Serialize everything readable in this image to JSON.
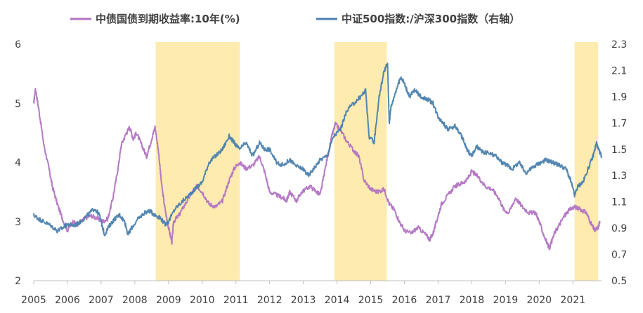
{
  "chart_data": {
    "type": "line",
    "legend_placement": "top",
    "grid": false,
    "x_range": [
      2005,
      2021.85
    ],
    "y_left": {
      "range": [
        2,
        6
      ],
      "ticks": [
        "2",
        "3",
        "4",
        "5",
        "6"
      ],
      "tick_values": [
        2,
        3,
        4,
        5,
        6
      ]
    },
    "y_right": {
      "range": [
        0.5,
        2.3
      ],
      "ticks": [
        "0.5",
        "0.7",
        "0.9",
        "1.1",
        "1.3",
        "1.5",
        "1.7",
        "1.9",
        "2.1",
        "2.3"
      ],
      "tick_values": [
        0.5,
        0.7,
        0.9,
        1.1,
        1.3,
        1.5,
        1.7,
        1.9,
        2.1,
        2.3
      ]
    },
    "x_ticks": [
      "2005",
      "2006",
      "2007",
      "2008",
      "2009",
      "2010",
      "2011",
      "2012",
      "2013",
      "2014",
      "2015",
      "2016",
      "2017",
      "2018",
      "2019",
      "2020",
      "2021"
    ],
    "x_tick_values": [
      2005,
      2006,
      2007,
      2008,
      2009,
      2010,
      2011,
      2012,
      2013,
      2014,
      2015,
      2016,
      2017,
      2018,
      2019,
      2020,
      2021
    ],
    "shaded_periods": [
      [
        2008.62,
        2011.12
      ],
      [
        2013.92,
        2015.48
      ],
      [
        2021.05,
        2021.75
      ]
    ],
    "shade_color": "#fdebb0",
    "series": [
      {
        "name": "中债国债到期收益率:10年(%)",
        "axis": "left",
        "color": "#b173c2",
        "points": [
          [
            2005.0,
            5.0
          ],
          [
            2005.05,
            5.25
          ],
          [
            2005.15,
            4.9
          ],
          [
            2005.3,
            4.3
          ],
          [
            2005.45,
            3.9
          ],
          [
            2005.55,
            3.6
          ],
          [
            2005.7,
            3.3
          ],
          [
            2005.85,
            3.05
          ],
          [
            2006.0,
            2.85
          ],
          [
            2006.15,
            3.0
          ],
          [
            2006.3,
            2.95
          ],
          [
            2006.5,
            3.05
          ],
          [
            2006.7,
            3.1
          ],
          [
            2006.9,
            3.05
          ],
          [
            2007.05,
            3.0
          ],
          [
            2007.2,
            3.05
          ],
          [
            2007.35,
            3.4
          ],
          [
            2007.5,
            3.9
          ],
          [
            2007.6,
            4.3
          ],
          [
            2007.75,
            4.5
          ],
          [
            2007.85,
            4.6
          ],
          [
            2007.95,
            4.4
          ],
          [
            2008.05,
            4.5
          ],
          [
            2008.2,
            4.3
          ],
          [
            2008.35,
            4.1
          ],
          [
            2008.5,
            4.4
          ],
          [
            2008.6,
            4.6
          ],
          [
            2008.7,
            4.2
          ],
          [
            2008.8,
            3.6
          ],
          [
            2008.9,
            3.2
          ],
          [
            2009.0,
            2.9
          ],
          [
            2009.1,
            2.65
          ],
          [
            2009.15,
            3.0
          ],
          [
            2009.3,
            3.1
          ],
          [
            2009.5,
            3.3
          ],
          [
            2009.7,
            3.5
          ],
          [
            2009.85,
            3.6
          ],
          [
            2010.0,
            3.5
          ],
          [
            2010.2,
            3.3
          ],
          [
            2010.4,
            3.25
          ],
          [
            2010.6,
            3.35
          ],
          [
            2010.8,
            3.7
          ],
          [
            2010.95,
            3.9
          ],
          [
            2011.1,
            4.0
          ],
          [
            2011.3,
            3.9
          ],
          [
            2011.5,
            3.95
          ],
          [
            2011.7,
            4.1
          ],
          [
            2011.85,
            3.85
          ],
          [
            2012.0,
            3.5
          ],
          [
            2012.2,
            3.45
          ],
          [
            2012.4,
            3.4
          ],
          [
            2012.5,
            3.35
          ],
          [
            2012.6,
            3.5
          ],
          [
            2012.8,
            3.35
          ],
          [
            2012.95,
            3.5
          ],
          [
            2013.2,
            3.6
          ],
          [
            2013.4,
            3.5
          ],
          [
            2013.5,
            3.45
          ],
          [
            2013.65,
            3.9
          ],
          [
            2013.85,
            4.45
          ],
          [
            2013.95,
            4.65
          ],
          [
            2014.1,
            4.55
          ],
          [
            2014.3,
            4.35
          ],
          [
            2014.5,
            4.2
          ],
          [
            2014.65,
            4.1
          ],
          [
            2014.8,
            3.7
          ],
          [
            2015.0,
            3.55
          ],
          [
            2015.2,
            3.5
          ],
          [
            2015.4,
            3.55
          ],
          [
            2015.55,
            3.3
          ],
          [
            2015.7,
            3.2
          ],
          [
            2015.85,
            3.0
          ],
          [
            2016.0,
            2.85
          ],
          [
            2016.2,
            2.8
          ],
          [
            2016.4,
            2.9
          ],
          [
            2016.6,
            2.8
          ],
          [
            2016.75,
            2.7
          ],
          [
            2016.85,
            2.8
          ],
          [
            2016.95,
            3.0
          ],
          [
            2017.1,
            3.3
          ],
          [
            2017.3,
            3.45
          ],
          [
            2017.5,
            3.6
          ],
          [
            2017.7,
            3.65
          ],
          [
            2017.85,
            3.7
          ],
          [
            2018.0,
            3.85
          ],
          [
            2018.2,
            3.75
          ],
          [
            2018.4,
            3.6
          ],
          [
            2018.6,
            3.55
          ],
          [
            2018.8,
            3.4
          ],
          [
            2018.95,
            3.2
          ],
          [
            2019.1,
            3.15
          ],
          [
            2019.3,
            3.4
          ],
          [
            2019.5,
            3.25
          ],
          [
            2019.7,
            3.15
          ],
          [
            2019.9,
            3.15
          ],
          [
            2020.0,
            3.0
          ],
          [
            2020.15,
            2.75
          ],
          [
            2020.3,
            2.55
          ],
          [
            2020.45,
            2.8
          ],
          [
            2020.6,
            2.95
          ],
          [
            2020.75,
            3.1
          ],
          [
            2020.9,
            3.2
          ],
          [
            2021.05,
            3.25
          ],
          [
            2021.25,
            3.2
          ],
          [
            2021.4,
            3.15
          ],
          [
            2021.55,
            2.95
          ],
          [
            2021.65,
            2.85
          ],
          [
            2021.75,
            2.9
          ],
          [
            2021.8,
            3.0
          ]
        ]
      },
      {
        "name": "中证500指数:/沪深300指数（右轴）",
        "axis": "right",
        "color": "#4a7fad",
        "points": [
          [
            2005.0,
            1.0
          ],
          [
            2005.15,
            0.97
          ],
          [
            2005.3,
            0.95
          ],
          [
            2005.5,
            0.92
          ],
          [
            2005.7,
            0.88
          ],
          [
            2005.85,
            0.9
          ],
          [
            2006.0,
            0.93
          ],
          [
            2006.2,
            0.92
          ],
          [
            2006.4,
            0.95
          ],
          [
            2006.6,
            1.0
          ],
          [
            2006.8,
            1.05
          ],
          [
            2006.95,
            1.0
          ],
          [
            2007.1,
            0.85
          ],
          [
            2007.25,
            0.92
          ],
          [
            2007.4,
            0.97
          ],
          [
            2007.55,
            1.0
          ],
          [
            2007.7,
            0.95
          ],
          [
            2007.8,
            0.85
          ],
          [
            2007.9,
            0.9
          ],
          [
            2008.1,
            0.97
          ],
          [
            2008.3,
            1.02
          ],
          [
            2008.45,
            1.03
          ],
          [
            2008.6,
            1.0
          ],
          [
            2008.75,
            0.98
          ],
          [
            2008.9,
            0.93
          ],
          [
            2009.0,
            0.95
          ],
          [
            2009.2,
            1.05
          ],
          [
            2009.4,
            1.1
          ],
          [
            2009.6,
            1.15
          ],
          [
            2009.8,
            1.2
          ],
          [
            2010.0,
            1.25
          ],
          [
            2010.2,
            1.4
          ],
          [
            2010.4,
            1.45
          ],
          [
            2010.6,
            1.5
          ],
          [
            2010.8,
            1.6
          ],
          [
            2010.95,
            1.55
          ],
          [
            2011.1,
            1.5
          ],
          [
            2011.3,
            1.55
          ],
          [
            2011.5,
            1.45
          ],
          [
            2011.7,
            1.55
          ],
          [
            2011.85,
            1.5
          ],
          [
            2012.0,
            1.5
          ],
          [
            2012.2,
            1.4
          ],
          [
            2012.4,
            1.38
          ],
          [
            2012.6,
            1.42
          ],
          [
            2012.8,
            1.37
          ],
          [
            2013.0,
            1.35
          ],
          [
            2013.15,
            1.3
          ],
          [
            2013.3,
            1.35
          ],
          [
            2013.5,
            1.42
          ],
          [
            2013.7,
            1.45
          ],
          [
            2013.9,
            1.6
          ],
          [
            2014.1,
            1.65
          ],
          [
            2014.3,
            1.8
          ],
          [
            2014.5,
            1.85
          ],
          [
            2014.7,
            1.9
          ],
          [
            2014.85,
            1.95
          ],
          [
            2014.95,
            1.6
          ],
          [
            2015.1,
            1.55
          ],
          [
            2015.25,
            1.9
          ],
          [
            2015.4,
            2.1
          ],
          [
            2015.5,
            2.15
          ],
          [
            2015.55,
            1.7
          ],
          [
            2015.6,
            1.82
          ],
          [
            2015.75,
            1.95
          ],
          [
            2015.9,
            2.05
          ],
          [
            2016.0,
            2.0
          ],
          [
            2016.15,
            1.9
          ],
          [
            2016.3,
            1.95
          ],
          [
            2016.5,
            1.9
          ],
          [
            2016.7,
            1.88
          ],
          [
            2016.85,
            1.85
          ],
          [
            2017.0,
            1.75
          ],
          [
            2017.15,
            1.7
          ],
          [
            2017.3,
            1.65
          ],
          [
            2017.5,
            1.68
          ],
          [
            2017.7,
            1.6
          ],
          [
            2017.85,
            1.5
          ],
          [
            2018.0,
            1.45
          ],
          [
            2018.15,
            1.52
          ],
          [
            2018.3,
            1.48
          ],
          [
            2018.5,
            1.47
          ],
          [
            2018.7,
            1.45
          ],
          [
            2018.9,
            1.4
          ],
          [
            2019.05,
            1.38
          ],
          [
            2019.2,
            1.35
          ],
          [
            2019.4,
            1.4
          ],
          [
            2019.6,
            1.32
          ],
          [
            2019.75,
            1.35
          ],
          [
            2019.9,
            1.38
          ],
          [
            2020.05,
            1.4
          ],
          [
            2020.2,
            1.42
          ],
          [
            2020.4,
            1.4
          ],
          [
            2020.6,
            1.38
          ],
          [
            2020.8,
            1.35
          ],
          [
            2020.95,
            1.25
          ],
          [
            2021.05,
            1.15
          ],
          [
            2021.15,
            1.22
          ],
          [
            2021.3,
            1.25
          ],
          [
            2021.45,
            1.35
          ],
          [
            2021.6,
            1.45
          ],
          [
            2021.7,
            1.55
          ],
          [
            2021.75,
            1.5
          ],
          [
            2021.85,
            1.45
          ]
        ]
      }
    ]
  }
}
